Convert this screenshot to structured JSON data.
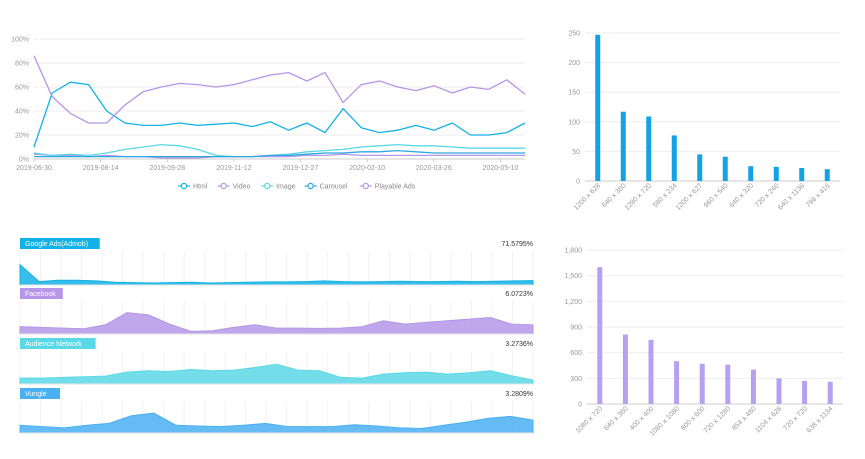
{
  "chart_data": [
    {
      "type": "line",
      "title": "",
      "x_labels": [
        "2019-06-30",
        "2019-08-14",
        "2019-09-28",
        "2019-11-12",
        "2019-12-27",
        "2020-02-10",
        "2020-03-26",
        "2020-05-10"
      ],
      "y_ticks": [
        "0%",
        "20%",
        "40%",
        "60%",
        "80%",
        "100%"
      ],
      "ylim": [
        0,
        100
      ],
      "legend_position": "bottom",
      "colors": {
        "Html": "#13b1e6",
        "Video": "#b596e8",
        "Image": "#5ad8e6",
        "Carousel": "#2fa8e0",
        "Playable Ads": "#b596e8"
      },
      "series": [
        {
          "name": "Html",
          "values": [
            10,
            55,
            64,
            62,
            40,
            30,
            28,
            28,
            30,
            28,
            29,
            30,
            27,
            31,
            24,
            30,
            22,
            42,
            26,
            22,
            24,
            28,
            24,
            30,
            20,
            20,
            22,
            30
          ]
        },
        {
          "name": "Video",
          "values": [
            4,
            3,
            3,
            2,
            3,
            2,
            2,
            1,
            1,
            1,
            2,
            2,
            2,
            2,
            2,
            3,
            3,
            4,
            3,
            3,
            3,
            3,
            3,
            3,
            3,
            3,
            3,
            3
          ]
        },
        {
          "name": "Image",
          "values": [
            5,
            3,
            4,
            3,
            5,
            8,
            10,
            12,
            11,
            8,
            3,
            2,
            2,
            3,
            4,
            6,
            7,
            8,
            10,
            11,
            12,
            11,
            11,
            10,
            9,
            9,
            9,
            9
          ]
        },
        {
          "name": "Carousel",
          "values": [
            2,
            2,
            2,
            2,
            2,
            2,
            2,
            2,
            2,
            2,
            2,
            2,
            2,
            3,
            3,
            4,
            5,
            5,
            6,
            6,
            7,
            6,
            5,
            5,
            5,
            5,
            5,
            5
          ]
        },
        {
          "name": "Playable Ads",
          "values": [
            86,
            52,
            38,
            30,
            30,
            45,
            56,
            60,
            63,
            62,
            60,
            62,
            66,
            70,
            72,
            65,
            72,
            47,
            62,
            65,
            60,
            57,
            61,
            55,
            60,
            58,
            66,
            54
          ]
        }
      ]
    },
    {
      "type": "bar",
      "title": "",
      "categories": [
        "1200 x 628",
        "640 x 360",
        "1280 x 720",
        "580 x 234",
        "1200 x 627",
        "960 x 540",
        "640 x 320",
        "720 x 240",
        "640 x 1136",
        "796 x 416"
      ],
      "values": [
        247,
        117,
        109,
        77,
        45,
        41,
        25,
        24,
        22,
        20
      ],
      "y_ticks": [
        0,
        50,
        100,
        150,
        200,
        250
      ],
      "ylim": [
        0,
        250
      ],
      "color": "#13a3e4"
    },
    {
      "type": "area",
      "title": "",
      "panels": [
        {
          "label": "Google Ads(Admob)",
          "percent": "71.5795%",
          "color": "#13b1e6",
          "values": [
            60,
            10,
            14,
            14,
            12,
            8,
            7,
            6,
            7,
            8,
            6,
            7,
            8,
            9,
            9,
            10,
            12,
            10,
            9,
            10,
            11,
            10,
            10,
            11,
            10,
            11,
            12,
            13
          ]
        },
        {
          "label": "Facebook",
          "percent": "6.0723%",
          "color": "#b596e8",
          "values": [
            22,
            20,
            18,
            16,
            28,
            65,
            58,
            30,
            8,
            10,
            20,
            28,
            18,
            18,
            17,
            18,
            22,
            40,
            30,
            35,
            40,
            45,
            50,
            30,
            28
          ]
        },
        {
          "label": "Audience Network",
          "percent": "3.2736%",
          "color": "#5ad8e6",
          "values": [
            18,
            18,
            20,
            22,
            24,
            36,
            40,
            38,
            44,
            40,
            42,
            50,
            60,
            42,
            40,
            20,
            18,
            30,
            34,
            36,
            30,
            34,
            40,
            25,
            12
          ]
        },
        {
          "label": "Vungle",
          "percent": "3.2809%",
          "color": "#4ab0f2",
          "values": [
            24,
            20,
            16,
            24,
            30,
            54,
            62,
            24,
            22,
            20,
            24,
            30,
            20,
            20,
            20,
            26,
            22,
            16,
            14,
            24,
            34,
            46,
            52,
            40
          ]
        }
      ]
    },
    {
      "type": "bar",
      "title": "",
      "categories": [
        "1080 x 720",
        "640 x 360",
        "400 x 400",
        "1080 x 1080",
        "800 x 600",
        "720 x 1280",
        "854 x 480",
        "1104 x 628",
        "720 x 720",
        "638 x 1134"
      ],
      "values": [
        1600,
        812,
        750,
        500,
        470,
        460,
        402,
        300,
        270,
        260
      ],
      "y_ticks": [
        "0",
        "300",
        "600",
        "900",
        "1,200",
        "1,500",
        "1,800"
      ],
      "ylim": [
        0,
        1800
      ],
      "color": "#b6a0ef"
    }
  ]
}
